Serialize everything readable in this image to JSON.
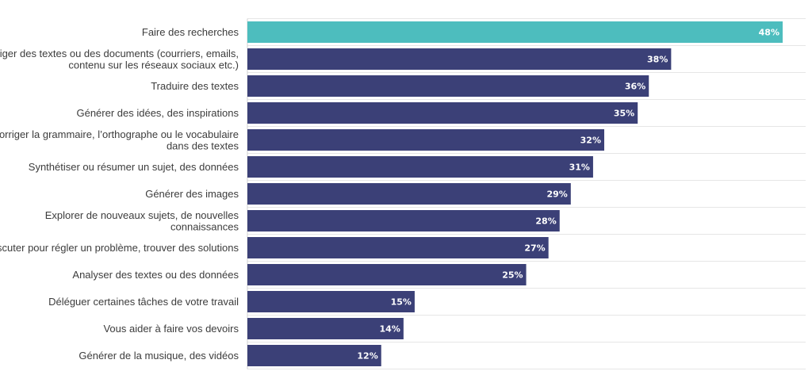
{
  "chart_data": {
    "type": "bar",
    "orientation": "horizontal",
    "categories": [
      [
        "Faire des recherches"
      ],
      [
        "Rédiger des textes ou des documents (courriers, emails,",
        "contenu sur les réseaux sociaux etc.)"
      ],
      [
        "Traduire des textes"
      ],
      [
        "Générer des idées, des inspirations"
      ],
      [
        "Corriger la grammaire, l’orthographe ou le vocabulaire",
        "dans des textes"
      ],
      [
        "Synthétiser ou résumer un sujet, des données"
      ],
      [
        "Générer des images"
      ],
      [
        "Explorer de nouveaux sujets, de nouvelles",
        "connaissances"
      ],
      [
        "Discuter pour régler un problème, trouver des solutions"
      ],
      [
        "Analyser des textes ou des données"
      ],
      [
        "Déléguer certaines tâches de votre travail"
      ],
      [
        "Vous aider à faire vos devoirs"
      ],
      [
        "Générer de la musique, des vidéos"
      ]
    ],
    "values": [
      48,
      38,
      36,
      35,
      32,
      31,
      29,
      28,
      27,
      25,
      15,
      14,
      12
    ],
    "value_labels": [
      "48%",
      "38%",
      "36%",
      "35%",
      "32%",
      "31%",
      "29%",
      "28%",
      "27%",
      "25%",
      "15%",
      "14%",
      "12%"
    ],
    "unit": "%",
    "xlim": [
      0,
      50
    ],
    "grid": true,
    "highlight_index": 0,
    "colors": {
      "highlight": "#4dbdbe",
      "default": "#3b4077",
      "value_text": "#ffffff",
      "label_text": "#3c3c3c",
      "grid": "#e6e6e6"
    }
  }
}
